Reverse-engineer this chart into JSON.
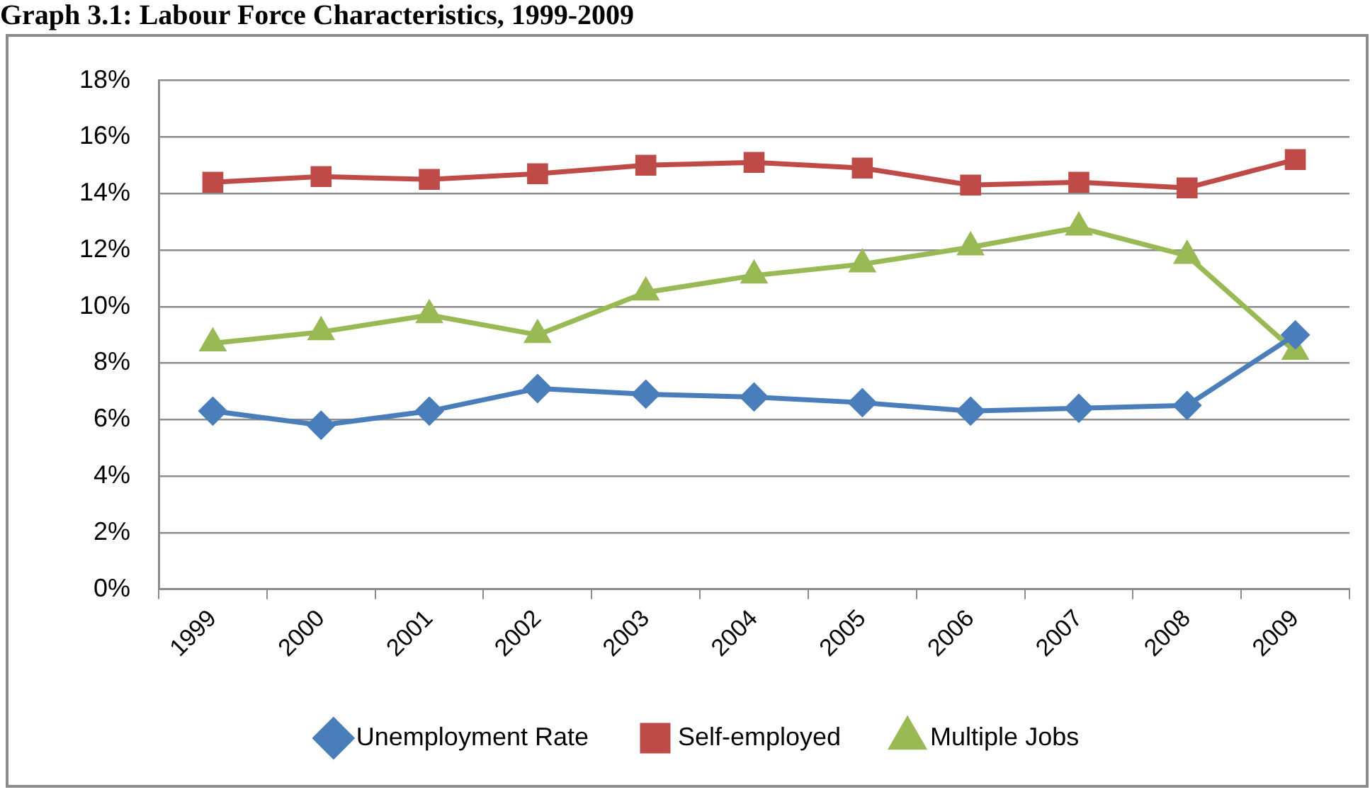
{
  "chart_data": {
    "type": "line",
    "title": "Graph 3.1: Labour Force Characteristics, 1999-2009",
    "categories": [
      "1999",
      "2000",
      "2001",
      "2002",
      "2003",
      "2004",
      "2005",
      "2006",
      "2007",
      "2008",
      "2009"
    ],
    "series": [
      {
        "name": "Unemployment Rate",
        "color": "#4a7ebb",
        "marker": "diamond",
        "values": [
          6.3,
          5.8,
          6.3,
          7.1,
          6.9,
          6.8,
          6.6,
          6.3,
          6.4,
          6.5,
          9.0
        ]
      },
      {
        "name": "Self-employed",
        "color": "#be4b48",
        "marker": "square",
        "values": [
          14.4,
          14.6,
          14.5,
          14.7,
          15.0,
          15.1,
          14.9,
          14.3,
          14.4,
          14.2,
          15.2
        ]
      },
      {
        "name": "Multiple Jobs",
        "color": "#98b954",
        "marker": "triangle",
        "values": [
          8.7,
          9.1,
          9.7,
          9.0,
          10.5,
          11.1,
          11.5,
          12.1,
          12.8,
          11.8,
          8.4
        ]
      }
    ],
    "ylim": [
      0,
      18
    ],
    "yticks": [
      {
        "value": 0,
        "label": "0%"
      },
      {
        "value": 2,
        "label": "2%"
      },
      {
        "value": 4,
        "label": "4%"
      },
      {
        "value": 6,
        "label": "6%"
      },
      {
        "value": 8,
        "label": "8%"
      },
      {
        "value": 10,
        "label": "10%"
      },
      {
        "value": 12,
        "label": "12%"
      },
      {
        "value": 14,
        "label": "14%"
      },
      {
        "value": 16,
        "label": "16%"
      },
      {
        "value": 18,
        "label": "18%"
      }
    ],
    "grid": "y",
    "legend": "bottom"
  }
}
